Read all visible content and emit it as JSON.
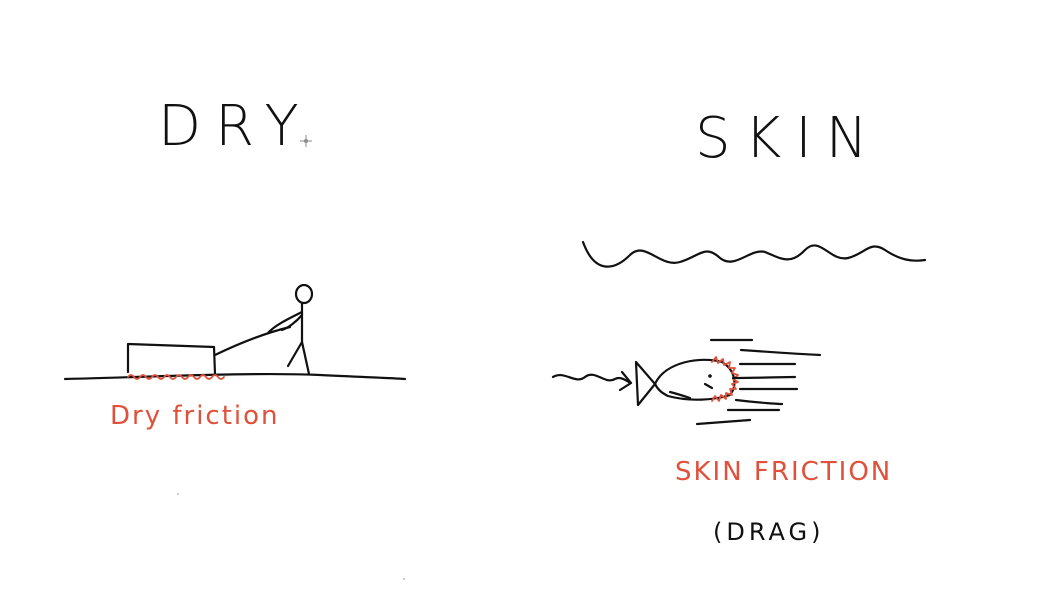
{
  "titles": {
    "left": "DRY",
    "right": "SKIN"
  },
  "labels": {
    "dry_friction": "Dry friction",
    "skin_friction": "SKIN FRICTION",
    "drag": "(DRAG)"
  },
  "colors": {
    "ink": "#111111",
    "annotation_red": "#e0503a",
    "background": "#ffffff"
  },
  "icons": {
    "cursor": "crosshair-cursor-icon"
  }
}
